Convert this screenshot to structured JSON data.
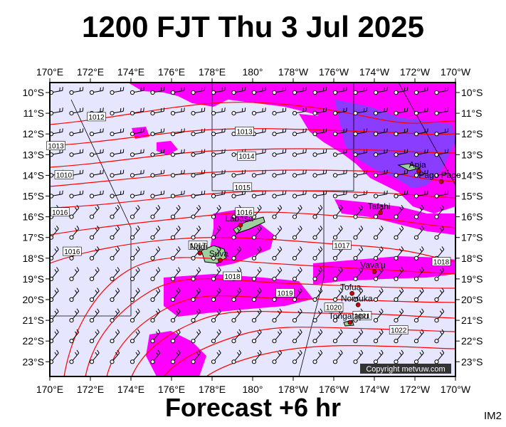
{
  "title": "1200 FJT Thu 3 Jul 2025",
  "footer": "Forecast +6 hr",
  "image_code": "IM2",
  "copyright": "Copyright metvuw.com",
  "axes": {
    "lon_labels": [
      "170°E",
      "172°E",
      "174°E",
      "176°E",
      "178°E",
      "180°",
      "178°W",
      "176°W",
      "174°W",
      "172°W",
      "170°W"
    ],
    "lat_labels": [
      "10°S",
      "11°S",
      "12°S",
      "13°S",
      "14°S",
      "15°S",
      "16°S",
      "17°S",
      "18°S",
      "19°S",
      "20°S",
      "21°S",
      "22°S",
      "23°S"
    ]
  },
  "places": [
    {
      "name": "Apia",
      "lon": -171.8,
      "lat": -13.8
    },
    {
      "name": "Pago Pago",
      "lon": -170.7,
      "lat": -14.3
    },
    {
      "name": "Tafahi",
      "lon": -173.7,
      "lat": -15.8
    },
    {
      "name": "Labasa",
      "lon": 179.4,
      "lat": -16.4
    },
    {
      "name": "Nadi",
      "lon": 177.4,
      "lat": -17.75
    },
    {
      "name": "Suva",
      "lon": 178.4,
      "lat": -18.1
    },
    {
      "name": "Vava'u",
      "lon": -174.0,
      "lat": -18.65
    },
    {
      "name": "Tofua",
      "lon": -175.1,
      "lat": -19.7
    },
    {
      "name": "Nomuka",
      "lon": -174.8,
      "lat": -20.25
    },
    {
      "name": "Tongatapu",
      "lon": -175.2,
      "lat": -21.1
    }
  ],
  "isobars": [
    {
      "label": "1012",
      "lon": 172.3,
      "lat": -11.2
    },
    {
      "label": "1013",
      "lon": 170.3,
      "lat": -12.6
    },
    {
      "label": "1013",
      "lon": 179.6,
      "lat": -11.9
    },
    {
      "label": "1014",
      "lon": 179.7,
      "lat": -13.1
    },
    {
      "label": "1010",
      "lon": 170.7,
      "lat": -14.0
    },
    {
      "label": "1015",
      "lon": 179.5,
      "lat": -14.6
    },
    {
      "label": "1016",
      "lon": 170.5,
      "lat": -15.8
    },
    {
      "label": "1016",
      "lon": 179.6,
      "lat": -15.8
    },
    {
      "label": "1016",
      "lon": 171.1,
      "lat": -17.7
    },
    {
      "label": "1017",
      "lon": 177.3,
      "lat": -17.4
    },
    {
      "label": "1017",
      "lon": -175.6,
      "lat": -17.4
    },
    {
      "label": "1018",
      "lon": -170.7,
      "lat": -18.2
    },
    {
      "label": "1018",
      "lon": 179.0,
      "lat": -18.9
    },
    {
      "label": "1019",
      "lon": -178.4,
      "lat": -19.7
    },
    {
      "label": "1020",
      "lon": -176.0,
      "lat": -20.4
    },
    {
      "label": "1021",
      "lon": -174.6,
      "lat": -20.8
    },
    {
      "label": "1022",
      "lon": -172.8,
      "lat": -21.5
    }
  ],
  "colors": {
    "background": "#e6e6ff",
    "rain_light": "#ff00ff",
    "rain_heavy": "#7f3fff",
    "isobar": "#ff0000",
    "land": "#9fcf9f"
  },
  "legend_items": []
}
